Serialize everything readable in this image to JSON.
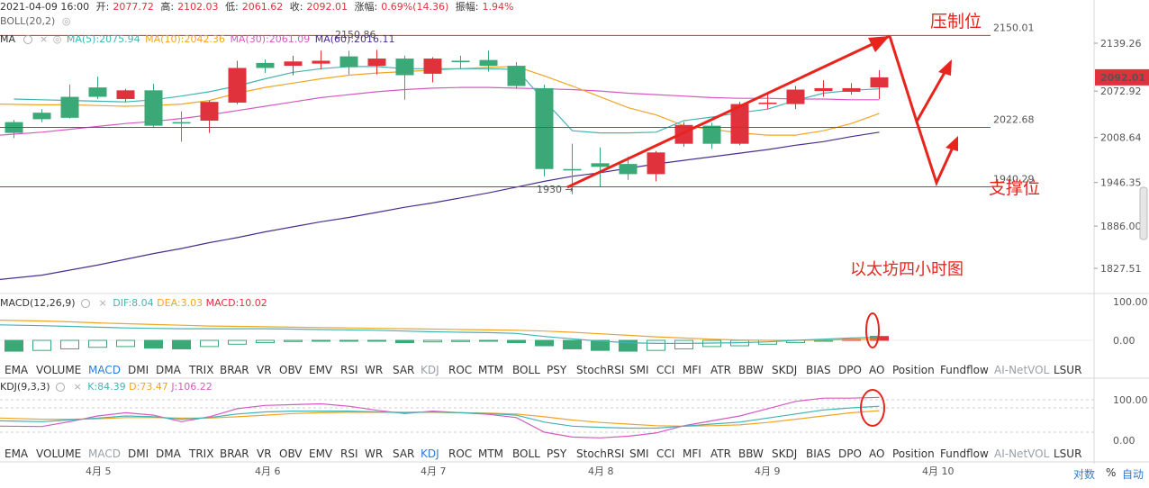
{
  "ohlc": {
    "date": "2021-04-09 16:00",
    "open_label": "开:",
    "open": "2077.72",
    "high_label": "高:",
    "high": "2102.03",
    "low_label": "低:",
    "low": "2061.62",
    "close_label": "收:",
    "close": "2092.01",
    "change_label": "涨幅:",
    "change": "0.69%(14.36)",
    "amplitude_label": "振幅:",
    "amplitude": "1.94%"
  },
  "boll_label": "BOLL(20,2)",
  "ma_row": {
    "prefix": "MA",
    "ma5": "MA(5):2075.94",
    "ma10": "MA(10):2042.36",
    "ma30": "MA(30):2061.09",
    "ma60": "MA(60):2016.11"
  },
  "colors": {
    "up": "#e0323c",
    "down": "#3aa977",
    "ma5": "#42b4b4",
    "ma10": "#f0a526",
    "ma30": "#d65ac2",
    "ma60": "#4b2f8f",
    "annotation": "#e8241c",
    "tab_active": "#2f7bd6"
  },
  "annotations": {
    "resistance_label": "压制位",
    "support_label": "支撑位",
    "caption": "以太坊四小时图",
    "level_2150": "2150.01",
    "level_2022": "2022.68",
    "level_1940": "1940.29",
    "high_marker": "2150.86",
    "low_marker": "1930 →"
  },
  "price_axis": {
    "ticks": [
      "2139.26",
      "2072.92",
      "2008.64",
      "1946.35",
      "1886.00",
      "1827.51"
    ],
    "current": "2092.01"
  },
  "macd": {
    "title": "MACD(12,26,9)",
    "dif": "DIF:8.04",
    "dea": "DEA:3.03",
    "macd": "MACD:10.02",
    "axis": [
      "100.00",
      "0.00"
    ]
  },
  "kdj": {
    "title": "KDJ(9,3,3)",
    "k": "K:84.39",
    "d": "D:73.47",
    "j": "J:106.22",
    "axis": [
      "100.00",
      "0.00"
    ]
  },
  "tabs": [
    "EMA",
    "VOLUME",
    "MACD",
    "DMI",
    "DMA",
    "TRIX",
    "BRAR",
    "VR",
    "OBV",
    "EMV",
    "RSI",
    "WR",
    "SAR",
    "KDJ",
    "ROC",
    "MTM",
    "BOLL",
    "PSY",
    "StochRSI",
    "SMI",
    "CCI",
    "MFI",
    "ATR",
    "BBW",
    "SKDJ",
    "BIAS",
    "DPO",
    "AO",
    "Position",
    "Fundflow",
    "AI-NetVOL",
    "LSUR"
  ],
  "tabs_row1_active": "MACD",
  "tabs_row2_active": "KDJ",
  "time_axis": [
    "4月 5",
    "4月 6",
    "4月 7",
    "4月 8",
    "4月 9",
    "4月 10"
  ],
  "bottom_controls": [
    "对数",
    "%",
    "自动"
  ],
  "chart_data": {
    "type": "candlestick",
    "price_ticks": [
      2139.26,
      2072.92,
      2008.64,
      1946.35,
      1886.0,
      1827.51
    ],
    "candles": [
      {
        "o": 2030,
        "c": 2015,
        "h": 2033,
        "l": 2008
      },
      {
        "o": 2043,
        "c": 2034,
        "h": 2048,
        "l": 2030
      },
      {
        "o": 2065,
        "c": 2036,
        "h": 2082,
        "l": 2035
      },
      {
        "o": 2078,
        "c": 2065,
        "h": 2093,
        "l": 2062
      },
      {
        "o": 2062,
        "c": 2074,
        "h": 2076,
        "l": 2058
      },
      {
        "o": 2074,
        "c": 2025,
        "h": 2083,
        "l": 2022
      },
      {
        "o": 2030,
        "c": 2028,
        "h": 2045,
        "l": 2003
      },
      {
        "o": 2032,
        "c": 2058,
        "h": 2060,
        "l": 2015
      },
      {
        "o": 2057,
        "c": 2105,
        "h": 2115,
        "l": 2055
      },
      {
        "o": 2112,
        "c": 2105,
        "h": 2117,
        "l": 2098
      },
      {
        "o": 2108,
        "c": 2114,
        "h": 2122,
        "l": 2095
      },
      {
        "o": 2111,
        "c": 2115,
        "h": 2129,
        "l": 2103
      },
      {
        "o": 2121,
        "c": 2106,
        "h": 2129,
        "l": 2096
      },
      {
        "o": 2108,
        "c": 2118,
        "h": 2130,
        "l": 2096
      },
      {
        "o": 2118,
        "c": 2095,
        "h": 2122,
        "l": 2061
      },
      {
        "o": 2097,
        "c": 2118,
        "h": 2120,
        "l": 2085
      },
      {
        "o": 2115,
        "c": 2113,
        "h": 2122,
        "l": 2104
      },
      {
        "o": 2116,
        "c": 2108,
        "h": 2129,
        "l": 2100
      },
      {
        "o": 2108,
        "c": 2080,
        "h": 2113,
        "l": 2076
      },
      {
        "o": 2077,
        "c": 1965,
        "h": 2082,
        "l": 1955
      },
      {
        "o": 1965,
        "c": 1963,
        "h": 2000,
        "l": 1930
      },
      {
        "o": 1973,
        "c": 1968,
        "h": 1995,
        "l": 1940
      },
      {
        "o": 1972,
        "c": 1958,
        "h": 1982,
        "l": 1950
      },
      {
        "o": 1958,
        "c": 1988,
        "h": 1990,
        "l": 1948
      },
      {
        "o": 2000,
        "c": 2026,
        "h": 2030,
        "l": 1996
      },
      {
        "o": 2025,
        "c": 2000,
        "h": 2029,
        "l": 1993
      },
      {
        "o": 2000,
        "c": 2055,
        "h": 2058,
        "l": 1998
      },
      {
        "o": 2055,
        "c": 2057,
        "h": 2072,
        "l": 2048
      },
      {
        "o": 2055,
        "c": 2075,
        "h": 2080,
        "l": 2048
      },
      {
        "o": 2073,
        "c": 2077,
        "h": 2088,
        "l": 2065
      },
      {
        "o": 2072,
        "c": 2077,
        "h": 2084,
        "l": 2068
      },
      {
        "o": 2078,
        "c": 2092,
        "h": 2102,
        "l": 2062
      }
    ],
    "ma5": [
      2062,
      2061,
      2060,
      2059,
      2058,
      2061,
      2066,
      2072,
      2080,
      2090,
      2099,
      2104,
      2107,
      2107,
      2104,
      2104,
      2104,
      2104,
      2103,
      2060,
      2018,
      2015,
      2015,
      2016,
      2032,
      2037,
      2043,
      2048,
      2060,
      2070,
      2074,
      2076
    ],
    "ma10": [
      2055,
      2054,
      2054,
      2053,
      2052,
      2053,
      2055,
      2060,
      2070,
      2078,
      2084,
      2090,
      2095,
      2098,
      2100,
      2102,
      2104,
      2106,
      2107,
      2094,
      2080,
      2065,
      2050,
      2040,
      2025,
      2020,
      2015,
      2012,
      2012,
      2018,
      2028,
      2042
    ],
    "ma30": [
      2012,
      2016,
      2020,
      2024,
      2028,
      2031,
      2035,
      2040,
      2046,
      2052,
      2058,
      2064,
      2068,
      2072,
      2075,
      2077,
      2078,
      2078,
      2077,
      2076,
      2075,
      2073,
      2070,
      2068,
      2066,
      2064,
      2063,
      2063,
      2062,
      2062,
      2061,
      2061
    ],
    "ma60": [
      1812,
      1818,
      1825,
      1832,
      1840,
      1848,
      1855,
      1863,
      1870,
      1878,
      1885,
      1892,
      1898,
      1905,
      1912,
      1918,
      1925,
      1932,
      1940,
      1948,
      1955,
      1960,
      1966,
      1972,
      1977,
      1982,
      1987,
      1992,
      1998,
      2003,
      2010,
      2016
    ],
    "macd_hist": [
      -28,
      -26,
      -22,
      -18,
      -16,
      -20,
      -22,
      -16,
      -10,
      -6,
      -3,
      -2,
      -2,
      -1,
      -6,
      -4,
      -3,
      -2,
      -6,
      -14,
      -22,
      -26,
      -28,
      -26,
      -22,
      -16,
      -14,
      -10,
      -6,
      -2,
      3,
      10
    ],
    "macd_dif": [
      40,
      38,
      36,
      34,
      32,
      31,
      30,
      30,
      30,
      30,
      29,
      28,
      27,
      26,
      24,
      22,
      21,
      20,
      18,
      10,
      4,
      -2,
      -6,
      -8,
      -8,
      -7,
      -6,
      -4,
      0,
      3,
      6,
      8
    ],
    "macd_dea": [
      52,
      50,
      48,
      45,
      43,
      41,
      39,
      37,
      36,
      35,
      34,
      33,
      32,
      31,
      30,
      29,
      28,
      27,
      26,
      24,
      21,
      17,
      13,
      9,
      6,
      3,
      1,
      0,
      0,
      1,
      2,
      3
    ],
    "kdj_k": [
      48,
      46,
      50,
      55,
      60,
      58,
      52,
      56,
      65,
      70,
      72,
      72,
      72,
      70,
      68,
      70,
      68,
      66,
      62,
      45,
      35,
      32,
      30,
      30,
      35,
      40,
      45,
      55,
      65,
      75,
      80,
      84
    ],
    "kdj_d": [
      55,
      52,
      52,
      53,
      56,
      56,
      55,
      55,
      58,
      62,
      66,
      68,
      69,
      69,
      69,
      69,
      68,
      67,
      65,
      58,
      50,
      44,
      40,
      36,
      35,
      36,
      38,
      44,
      52,
      60,
      68,
      73
    ],
    "kdj_j": [
      35,
      34,
      46,
      60,
      68,
      62,
      46,
      58,
      78,
      86,
      88,
      90,
      84,
      74,
      66,
      72,
      68,
      64,
      56,
      20,
      8,
      6,
      10,
      18,
      36,
      48,
      60,
      78,
      96,
      104,
      104,
      106
    ]
  }
}
